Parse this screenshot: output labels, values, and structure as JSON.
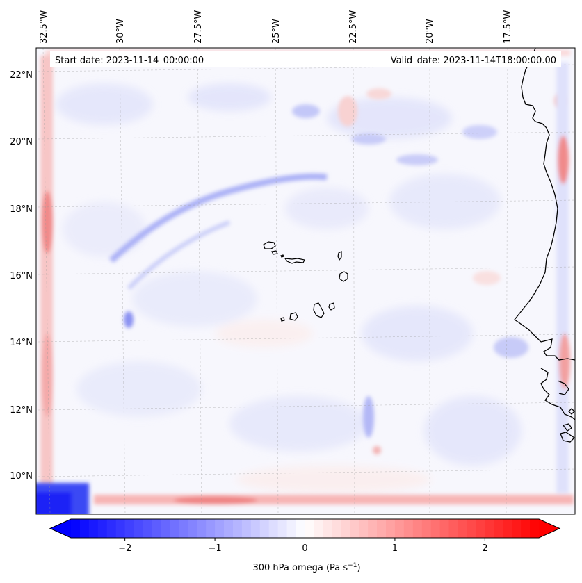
{
  "map": {
    "start_label": "Start date: 2023-11-14_00:00:00",
    "valid_label": "Valid_date: 2023-11-14T18:00:00.00",
    "lon_labels": [
      "32.5°W",
      "30°W",
      "27.5°W",
      "25°W",
      "22.5°W",
      "20°W",
      "17.5°W"
    ],
    "lat_labels": [
      "22°N",
      "20°N",
      "18°N",
      "16°N",
      "14°N",
      "12°N",
      "10°N"
    ],
    "field": "300 hPa omega",
    "colors": {
      "negative": "#0000ff",
      "zero": "#ffffff",
      "positive": "#ff0000",
      "coast": "#000000"
    }
  },
  "colorbar": {
    "label_prefix": "300 hPa omega (Pa s",
    "label_exp": "−1",
    "label_suffix": ")",
    "tick_labels": [
      "−2",
      "−1",
      "0",
      "1",
      "2"
    ],
    "ticks": [
      -2,
      -1,
      0,
      1,
      2
    ],
    "vmin": -2.6,
    "vmax": 2.6
  }
}
